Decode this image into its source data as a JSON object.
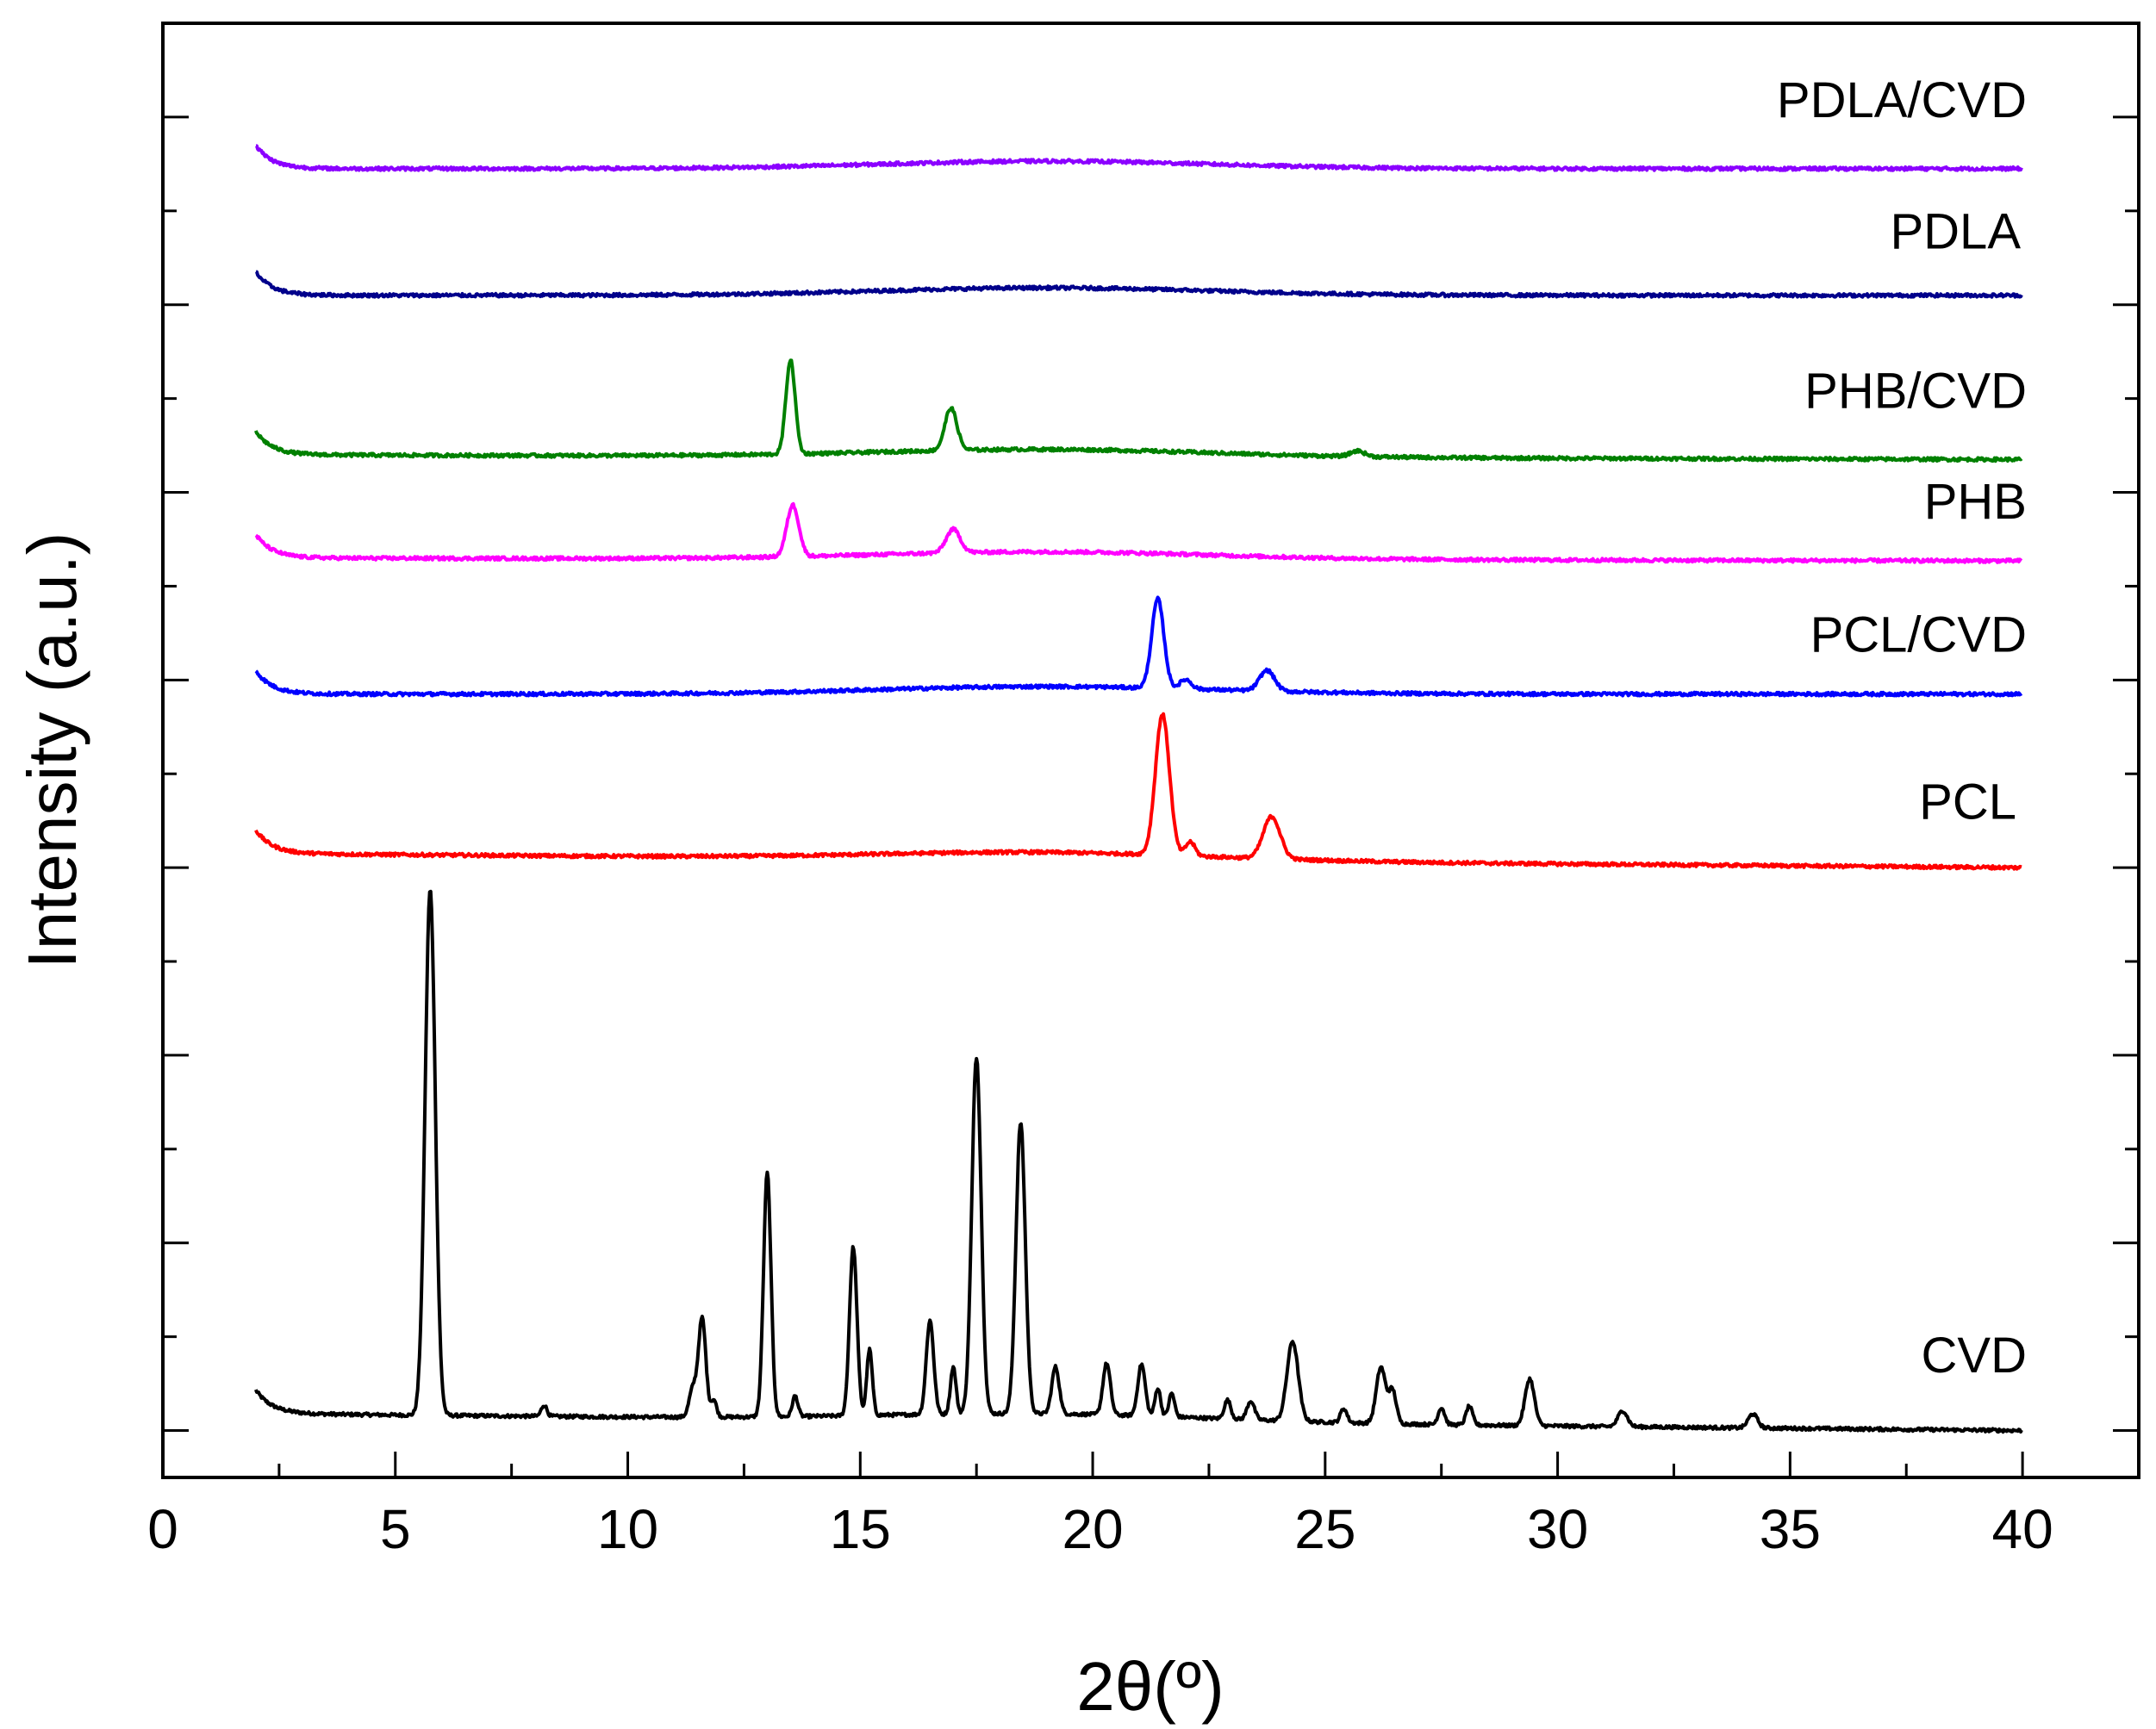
{
  "chart_data": {
    "type": "line",
    "title": "",
    "xlabel": "2θ(º)",
    "ylabel": "Intensity (a.u.)",
    "xlim": [
      0,
      42.5
    ],
    "ylim": [
      0,
      15.5
    ],
    "xticks": [
      0,
      5,
      10,
      15,
      20,
      25,
      30,
      35,
      40
    ],
    "xtick_labels": [
      "0",
      "5",
      "10",
      "15",
      "20",
      "25",
      "30",
      "35",
      "40"
    ],
    "grid": false,
    "legend": "inline labels at right",
    "series": [
      {
        "name": "CVD",
        "label": "CVD",
        "color": "#000000",
        "baseline_start": 0.68,
        "baseline_end": 0.5,
        "peaks": [
          [
            5.75,
            5.6,
            0.11
          ],
          [
            8.2,
            0.12,
            0.06
          ],
          [
            11.4,
            0.3,
            0.08
          ],
          [
            11.6,
            1.05,
            0.08
          ],
          [
            11.85,
            0.18,
            0.06
          ],
          [
            13.0,
            2.6,
            0.08
          ],
          [
            13.6,
            0.22,
            0.06
          ],
          [
            14.85,
            1.8,
            0.08
          ],
          [
            15.2,
            0.7,
            0.06
          ],
          [
            16.5,
            1.0,
            0.08
          ],
          [
            17.0,
            0.5,
            0.06
          ],
          [
            17.5,
            3.8,
            0.1
          ],
          [
            18.45,
            3.1,
            0.1
          ],
          [
            19.2,
            0.5,
            0.08
          ],
          [
            20.3,
            0.55,
            0.08
          ],
          [
            21.05,
            0.55,
            0.08
          ],
          [
            21.4,
            0.3,
            0.06
          ],
          [
            21.7,
            0.25,
            0.06
          ],
          [
            22.9,
            0.2,
            0.07
          ],
          [
            23.4,
            0.2,
            0.08
          ],
          [
            24.3,
            0.85,
            0.12
          ],
          [
            25.4,
            0.15,
            0.07
          ],
          [
            26.2,
            0.6,
            0.1
          ],
          [
            26.45,
            0.35,
            0.08
          ],
          [
            27.5,
            0.18,
            0.07
          ],
          [
            28.1,
            0.2,
            0.07
          ],
          [
            29.4,
            0.5,
            0.1
          ],
          [
            31.4,
            0.17,
            0.1
          ],
          [
            34.2,
            0.15,
            0.1
          ]
        ]
      },
      {
        "name": "PCL",
        "label": "PCL",
        "color": "#ff0000",
        "baseline_start": 6.65,
        "baseline_end": 6.5,
        "peaks": [
          [
            21.5,
            1.5,
            0.15
          ],
          [
            22.1,
            0.15,
            0.1
          ],
          [
            23.85,
            0.45,
            0.18
          ]
        ]
      },
      {
        "name": "PCL/CVD",
        "label": "PCL/CVD",
        "color": "#0000ff",
        "baseline_start": 8.35,
        "baseline_end": 8.35,
        "peaks": [
          [
            21.4,
            0.95,
            0.13
          ],
          [
            22.0,
            0.1,
            0.12
          ],
          [
            23.75,
            0.22,
            0.16
          ]
        ]
      },
      {
        "name": "PHB",
        "label": "PHB",
        "color": "#ff00ff",
        "baseline_start": 9.8,
        "baseline_end": 9.77,
        "peaks": [
          [
            13.55,
            0.55,
            0.13
          ],
          [
            17.0,
            0.25,
            0.15
          ]
        ]
      },
      {
        "name": "PHB/CVD",
        "label": "PHB/CVD",
        "color": "#008000",
        "baseline_start": 10.9,
        "baseline_end": 10.85,
        "peaks": [
          [
            13.5,
            1.0,
            0.1
          ],
          [
            16.95,
            0.45,
            0.13
          ],
          [
            25.7,
            0.06,
            0.15
          ]
        ]
      },
      {
        "name": "PDLA",
        "label": "PDLA",
        "color": "#00008b",
        "baseline_start": 12.6,
        "baseline_end": 12.6,
        "peaks": []
      },
      {
        "name": "PDLA/CVD",
        "label": "PDLA/CVD",
        "color": "#8b00ff",
        "baseline_start": 13.95,
        "baseline_end": 13.95,
        "peaks": []
      }
    ]
  }
}
